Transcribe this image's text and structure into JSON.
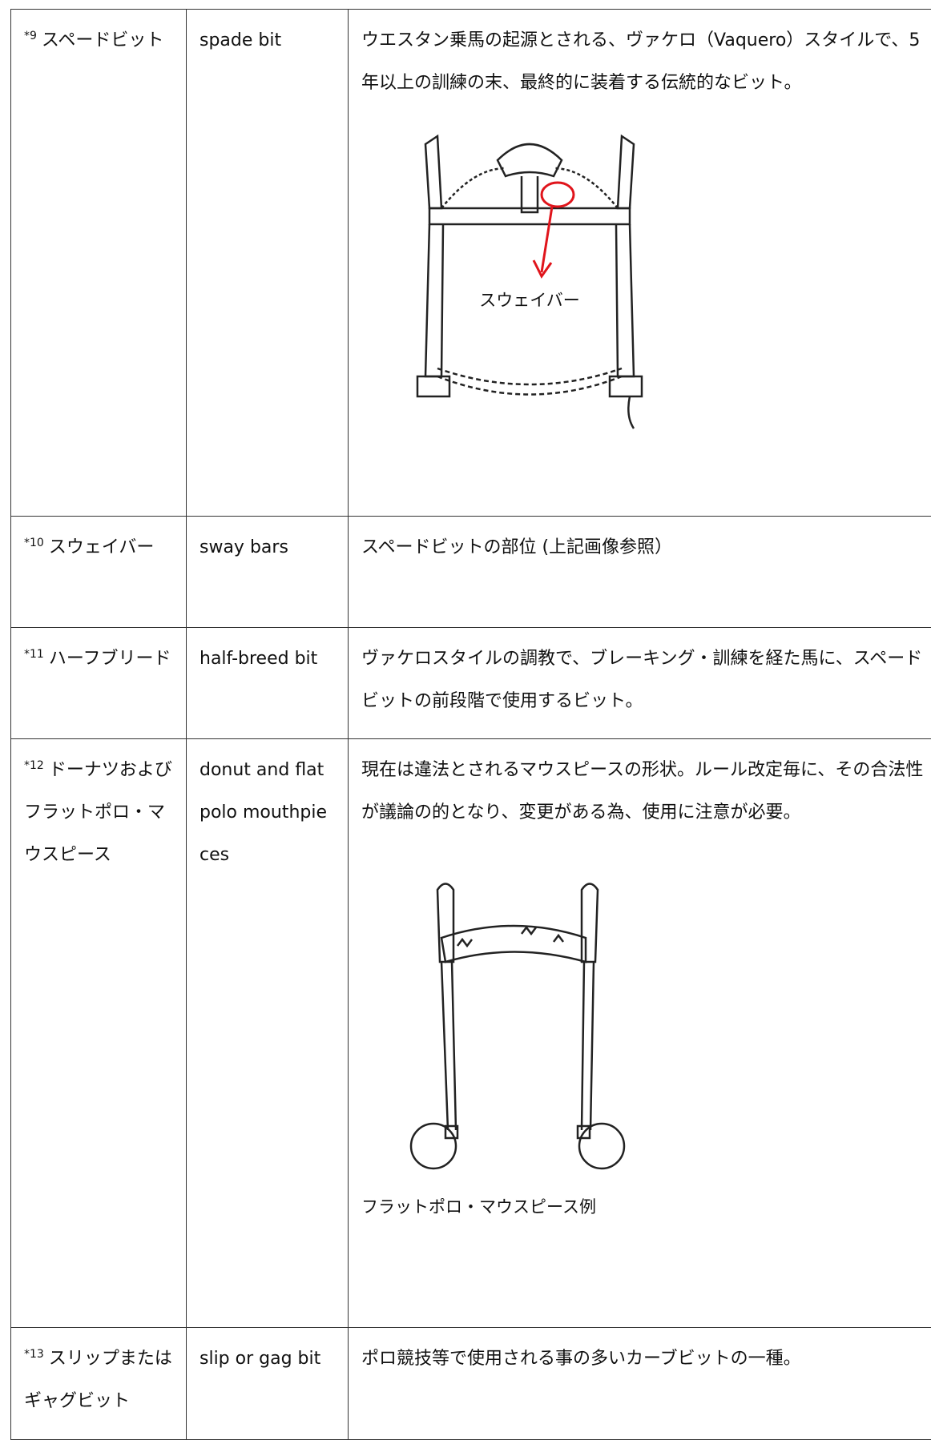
{
  "table": {
    "rows": [
      {
        "note": "*9",
        "term": "スペードビット",
        "english": "spade bit",
        "description": "ウエスタン乗馬の起源とされる、ヴァケロ（Vaquero）スタイルで、5 年以上の訓練の末、最終的に装着する伝統的なビット。",
        "figure_label": "スウェイバー"
      },
      {
        "note": "*10",
        "term": "スウェイバー",
        "english": "sway bars",
        "description": "スペードビットの部位 (上記画像参照）"
      },
      {
        "note": "*11",
        "term": "ハーフブリード",
        "english": "half-breed bit",
        "description": "ヴァケロスタイルの調教で、ブレーキング・訓練を経た馬に、スペードビットの前段階で使用するビット。"
      },
      {
        "note": "*12",
        "term": "ドーナツおよびフラットポロ・マウスピース",
        "english": "donut and flat polo mouthpieces",
        "description": "現在は違法とされるマウスピースの形状。ルール改定毎に、その合法性が議論の的となり、変更がある為、使用に注意が必要。",
        "figure_caption": "フラットポロ・マウスピース例"
      },
      {
        "note": "*13",
        "term": "スリップまたはギャグビット",
        "english": "slip or gag bit",
        "description": "ポロ競技等で使用される事の多いカーブビットの一種。"
      }
    ]
  }
}
